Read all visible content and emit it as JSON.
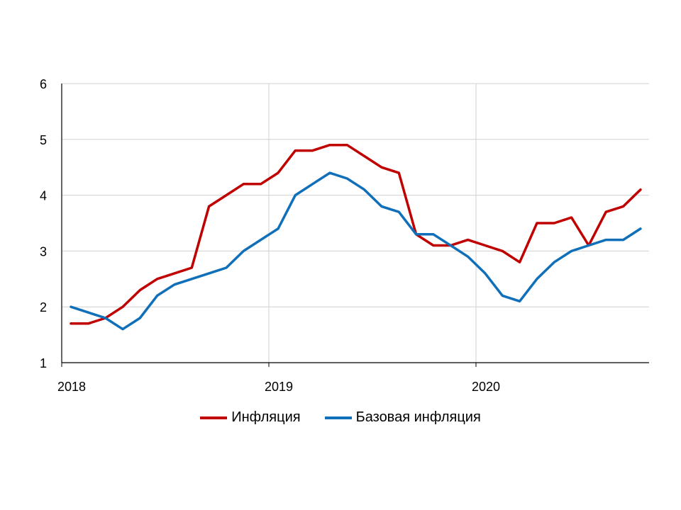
{
  "chart_data": {
    "type": "line",
    "title": "",
    "xlabel": "",
    "ylabel": "",
    "ylim": [
      1,
      6
    ],
    "yticks": [
      "1",
      "2",
      "3",
      "4",
      "5",
      "6"
    ],
    "xticks": [
      "2018",
      "2019",
      "2020"
    ],
    "grid": true,
    "legend_position": "bottom",
    "x": [
      "2018-01",
      "2018-02",
      "2018-03",
      "2018-04",
      "2018-05",
      "2018-06",
      "2018-07",
      "2018-08",
      "2018-09",
      "2018-10",
      "2018-11",
      "2018-12",
      "2019-01",
      "2019-02",
      "2019-03",
      "2019-04",
      "2019-05",
      "2019-06",
      "2019-07",
      "2019-08",
      "2019-09",
      "2019-10",
      "2019-11",
      "2019-12",
      "2020-01",
      "2020-02",
      "2020-03",
      "2020-04",
      "2020-05",
      "2020-06",
      "2020-07",
      "2020-08",
      "2020-09",
      "2020-10"
    ],
    "series": [
      {
        "name": "Инфляция",
        "color": "#c00000",
        "values": [
          1.7,
          1.7,
          1.8,
          2.0,
          2.3,
          2.5,
          2.6,
          2.7,
          3.8,
          4.0,
          4.2,
          4.2,
          4.4,
          4.8,
          4.8,
          4.9,
          4.9,
          4.7,
          4.5,
          4.4,
          3.3,
          3.1,
          3.1,
          3.2,
          3.1,
          3.0,
          2.8,
          3.5,
          3.5,
          3.6,
          3.1,
          3.7,
          3.8,
          4.1
        ]
      },
      {
        "name": "Базовая инфляция",
        "color": "#0f6fb8",
        "values": [
          2.0,
          1.9,
          1.8,
          1.6,
          1.8,
          2.2,
          2.4,
          2.5,
          2.6,
          2.7,
          3.0,
          3.2,
          3.4,
          4.0,
          4.2,
          4.4,
          4.3,
          4.1,
          3.8,
          3.7,
          3.3,
          3.3,
          3.1,
          2.9,
          2.6,
          2.2,
          2.1,
          2.5,
          2.8,
          3.0,
          3.1,
          3.2,
          3.2,
          3.4
        ]
      }
    ]
  }
}
